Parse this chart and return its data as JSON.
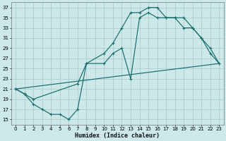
{
  "xlabel": "Humidex (Indice chaleur)",
  "bg_color": "#cce8e8",
  "grid_color": "#aacece",
  "line_color": "#1a6b6b",
  "xlim": [
    -0.5,
    23.5
  ],
  "ylim": [
    14,
    38
  ],
  "yticks": [
    15,
    17,
    19,
    21,
    23,
    25,
    27,
    29,
    31,
    33,
    35,
    37
  ],
  "xticks": [
    0,
    1,
    2,
    3,
    4,
    5,
    6,
    7,
    8,
    9,
    10,
    11,
    12,
    13,
    14,
    15,
    16,
    17,
    18,
    19,
    20,
    21,
    22,
    23
  ],
  "line1_x": [
    0,
    1,
    2,
    3,
    4,
    5,
    6,
    7,
    8,
    10,
    11,
    12,
    13,
    14,
    15,
    16,
    17,
    18,
    19,
    20,
    21,
    22,
    23
  ],
  "line1_y": [
    21,
    20,
    18,
    17,
    16,
    16,
    15,
    17,
    26,
    28,
    30,
    33,
    36,
    36,
    37,
    37,
    35,
    35,
    35,
    33,
    31,
    28,
    26
  ],
  "line2_x": [
    0,
    1,
    2,
    7,
    8,
    10,
    11,
    12,
    13,
    14,
    15,
    16,
    17,
    18,
    19,
    20,
    21,
    22,
    23
  ],
  "line2_y": [
    21,
    20,
    19,
    22,
    26,
    26,
    28,
    29,
    23,
    35,
    36,
    35,
    35,
    35,
    33,
    33,
    31,
    29,
    26
  ],
  "line3_x": [
    0,
    23
  ],
  "line3_y": [
    21,
    26
  ],
  "figsize": [
    3.2,
    2.0
  ],
  "dpi": 100
}
